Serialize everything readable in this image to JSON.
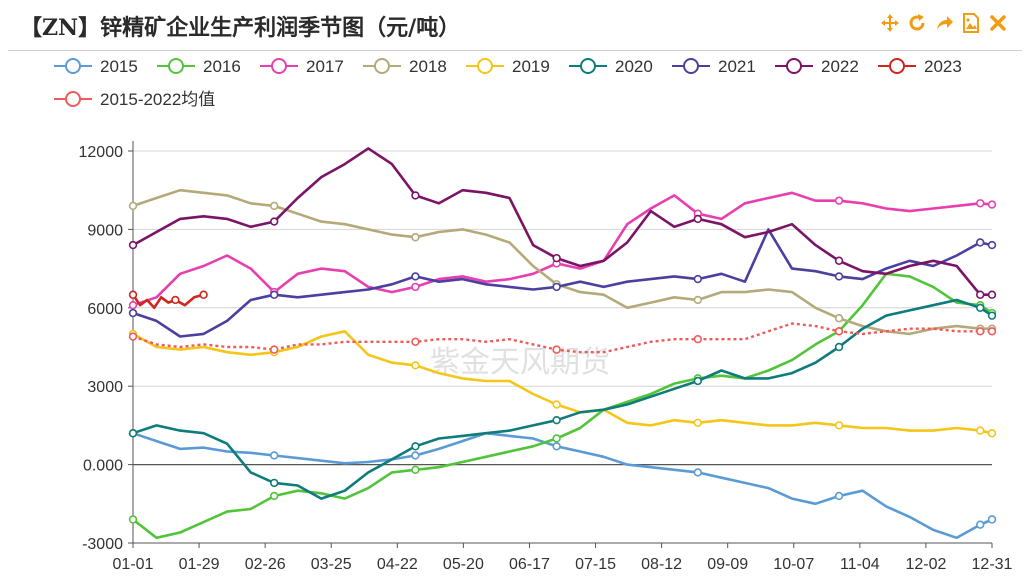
{
  "header": {
    "title": "【ZN】锌精矿企业生产利润季节图（元/吨）",
    "toolbar": [
      {
        "name": "move-icon",
        "label": "移动"
      },
      {
        "name": "refresh-icon",
        "label": "刷新"
      },
      {
        "name": "share-icon",
        "label": "分享"
      },
      {
        "name": "save-image-icon",
        "label": "保存图片"
      },
      {
        "name": "close-icon",
        "label": "关闭"
      }
    ],
    "accent": "#f39c12"
  },
  "watermark": "紫金天风期货",
  "chart_data": {
    "type": "line",
    "title": "【ZN】锌精矿企业生产利润季节图（元/吨）",
    "xlabel": "",
    "ylabel": "",
    "x_ticks": [
      "01-01",
      "01-29",
      "02-26",
      "03-25",
      "04-22",
      "05-20",
      "06-17",
      "07-15",
      "08-12",
      "09-09",
      "10-07",
      "11-04",
      "12-02",
      "12-31"
    ],
    "y_ticks": [
      "-3000",
      "0.000",
      "3000",
      "6000",
      "9000",
      "12000"
    ],
    "ylim": [
      -3000,
      12000
    ],
    "grid": true,
    "legend_position": "top",
    "series": [
      {
        "name": "2015",
        "color": "#5b9bd5",
        "dashed": false,
        "x": [
          0,
          10,
          20,
          30,
          40,
          50,
          60,
          70,
          80,
          90,
          100,
          110,
          120,
          130,
          140,
          150,
          160,
          170,
          180,
          190,
          200,
          210,
          220,
          230,
          240,
          250,
          260,
          270,
          280,
          290,
          300,
          310,
          320,
          330,
          340,
          350,
          360,
          365
        ],
        "y": [
          1200,
          900,
          600,
          650,
          500,
          450,
          350,
          250,
          150,
          50,
          100,
          200,
          350,
          600,
          900,
          1200,
          1100,
          1000,
          700,
          500,
          300,
          0,
          -100,
          -200,
          -300,
          -500,
          -700,
          -900,
          -1300,
          -1500,
          -1200,
          -1000,
          -1600,
          -2000,
          -2500,
          -2800,
          -2300,
          -2100
        ]
      },
      {
        "name": "2016",
        "color": "#52c43a",
        "dashed": false,
        "x": [
          0,
          10,
          20,
          30,
          40,
          50,
          60,
          70,
          80,
          90,
          100,
          110,
          120,
          130,
          140,
          150,
          160,
          170,
          180,
          190,
          200,
          210,
          220,
          230,
          240,
          250,
          260,
          270,
          280,
          290,
          300,
          310,
          320,
          330,
          340,
          350,
          360,
          365
        ],
        "y": [
          -2100,
          -2800,
          -2600,
          -2200,
          -1800,
          -1700,
          -1200,
          -1000,
          -1100,
          -1300,
          -900,
          -300,
          -200,
          -100,
          100,
          300,
          500,
          700,
          1000,
          1400,
          2100,
          2400,
          2700,
          3100,
          3300,
          3400,
          3300,
          3600,
          4000,
          4600,
          5100,
          6100,
          7300,
          7200,
          6800,
          6200,
          6100,
          5800
        ]
      },
      {
        "name": "2017",
        "color": "#e83fb0",
        "dashed": false,
        "x": [
          0,
          10,
          20,
          30,
          40,
          50,
          60,
          70,
          80,
          90,
          100,
          110,
          120,
          130,
          140,
          150,
          160,
          170,
          180,
          190,
          200,
          210,
          220,
          230,
          240,
          250,
          260,
          270,
          280,
          290,
          300,
          310,
          320,
          330,
          340,
          350,
          360,
          365
        ],
        "y": [
          6100,
          6400,
          7300,
          7600,
          8000,
          7500,
          6600,
          7300,
          7500,
          7400,
          6800,
          6600,
          6800,
          7100,
          7200,
          7000,
          7100,
          7300,
          7700,
          7500,
          7800,
          9200,
          9800,
          10300,
          9600,
          9400,
          10000,
          10200,
          10400,
          10100,
          10100,
          10000,
          9800,
          9700,
          9800,
          9900,
          10000,
          9950
        ]
      },
      {
        "name": "2018",
        "color": "#b5a97a",
        "dashed": false,
        "x": [
          0,
          10,
          20,
          30,
          40,
          50,
          60,
          70,
          80,
          90,
          100,
          110,
          120,
          130,
          140,
          150,
          160,
          170,
          180,
          190,
          200,
          210,
          220,
          230,
          240,
          250,
          260,
          270,
          280,
          290,
          300,
          310,
          320,
          330,
          340,
          350,
          360,
          365
        ],
        "y": [
          9900,
          10200,
          10500,
          10400,
          10300,
          10000,
          9900,
          9600,
          9300,
          9200,
          9000,
          8800,
          8700,
          8900,
          9000,
          8800,
          8500,
          7600,
          6900,
          6600,
          6500,
          6000,
          6200,
          6400,
          6300,
          6600,
          6600,
          6700,
          6600,
          6000,
          5600,
          5300,
          5100,
          5000,
          5200,
          5300,
          5200,
          5200
        ]
      },
      {
        "name": "2019",
        "color": "#f5c518",
        "dashed": false,
        "x": [
          0,
          10,
          20,
          30,
          40,
          50,
          60,
          70,
          80,
          90,
          100,
          110,
          120,
          130,
          140,
          150,
          160,
          170,
          180,
          190,
          200,
          210,
          220,
          230,
          240,
          250,
          260,
          270,
          280,
          290,
          300,
          310,
          320,
          330,
          340,
          350,
          360,
          365
        ],
        "y": [
          5000,
          4500,
          4400,
          4500,
          4300,
          4200,
          4300,
          4500,
          4900,
          5100,
          4200,
          3900,
          3800,
          3500,
          3300,
          3200,
          3200,
          2700,
          2300,
          2000,
          2100,
          1600,
          1500,
          1700,
          1600,
          1700,
          1600,
          1500,
          1500,
          1600,
          1500,
          1400,
          1400,
          1300,
          1300,
          1400,
          1300,
          1200
        ]
      },
      {
        "name": "2020",
        "color": "#0e7c7b",
        "dashed": false,
        "x": [
          0,
          10,
          20,
          30,
          40,
          50,
          60,
          70,
          80,
          90,
          100,
          110,
          120,
          130,
          140,
          150,
          160,
          170,
          180,
          190,
          200,
          210,
          220,
          230,
          240,
          250,
          260,
          270,
          280,
          290,
          300,
          310,
          320,
          330,
          340,
          350,
          360,
          365
        ],
        "y": [
          1200,
          1500,
          1300,
          1200,
          800,
          -300,
          -700,
          -800,
          -1300,
          -1000,
          -300,
          200,
          700,
          1000,
          1100,
          1200,
          1300,
          1500,
          1700,
          2000,
          2100,
          2300,
          2600,
          2900,
          3200,
          3600,
          3300,
          3300,
          3500,
          3900,
          4500,
          5200,
          5700,
          5900,
          6100,
          6300,
          6000,
          5700
        ]
      },
      {
        "name": "2021",
        "color": "#4b3fa0",
        "dashed": false,
        "x": [
          0,
          10,
          20,
          30,
          40,
          50,
          60,
          70,
          80,
          90,
          100,
          110,
          120,
          130,
          140,
          150,
          160,
          170,
          180,
          190,
          200,
          210,
          220,
          230,
          240,
          250,
          260,
          270,
          280,
          290,
          300,
          310,
          320,
          330,
          340,
          350,
          360,
          365
        ],
        "y": [
          5800,
          5500,
          4900,
          5000,
          5500,
          6300,
          6500,
          6400,
          6500,
          6600,
          6700,
          6900,
          7200,
          7000,
          7100,
          6900,
          6800,
          6700,
          6800,
          7000,
          6800,
          7000,
          7100,
          7200,
          7100,
          7300,
          7000,
          9000,
          7500,
          7400,
          7200,
          7100,
          7500,
          7800,
          7600,
          8000,
          8500,
          8400
        ]
      },
      {
        "name": "2022",
        "color": "#7b1466",
        "dashed": false,
        "x": [
          0,
          10,
          20,
          30,
          40,
          50,
          60,
          70,
          80,
          90,
          100,
          110,
          120,
          130,
          140,
          150,
          160,
          170,
          180,
          190,
          200,
          210,
          220,
          230,
          240,
          250,
          260,
          270,
          280,
          290,
          300,
          310,
          320,
          330,
          340,
          350,
          360,
          365
        ],
        "y": [
          8400,
          8900,
          9400,
          9500,
          9400,
          9100,
          9300,
          10200,
          11000,
          11500,
          12100,
          11500,
          10300,
          10000,
          10500,
          10400,
          10200,
          8400,
          7900,
          7600,
          7800,
          8500,
          9700,
          9100,
          9400,
          9200,
          8700,
          8900,
          9200,
          8400,
          7800,
          7400,
          7300,
          7600,
          7800,
          7600,
          6500,
          6500
        ]
      },
      {
        "name": "2023",
        "color": "#d0261e",
        "dashed": false,
        "x": [
          0,
          3,
          6,
          9,
          12,
          15,
          18,
          22,
          26,
          30
        ],
        "y": [
          6500,
          6100,
          6300,
          6000,
          6400,
          6200,
          6300,
          6100,
          6400,
          6500
        ]
      },
      {
        "name": "2015-2022均值",
        "color": "#f05a5a",
        "dashed": true,
        "x": [
          0,
          10,
          20,
          30,
          40,
          50,
          60,
          70,
          80,
          90,
          100,
          110,
          120,
          130,
          140,
          150,
          160,
          170,
          180,
          190,
          200,
          210,
          220,
          230,
          240,
          250,
          260,
          270,
          280,
          290,
          300,
          310,
          320,
          330,
          340,
          350,
          360,
          365
        ],
        "y": [
          4900,
          4600,
          4500,
          4600,
          4500,
          4500,
          4400,
          4600,
          4600,
          4700,
          4700,
          4700,
          4700,
          4800,
          4800,
          4700,
          4800,
          4600,
          4400,
          4300,
          4300,
          4500,
          4700,
          4800,
          4800,
          4800,
          4800,
          5100,
          5400,
          5300,
          5100,
          5000,
          5100,
          5200,
          5200,
          5100,
          5100,
          5100
        ]
      }
    ]
  }
}
